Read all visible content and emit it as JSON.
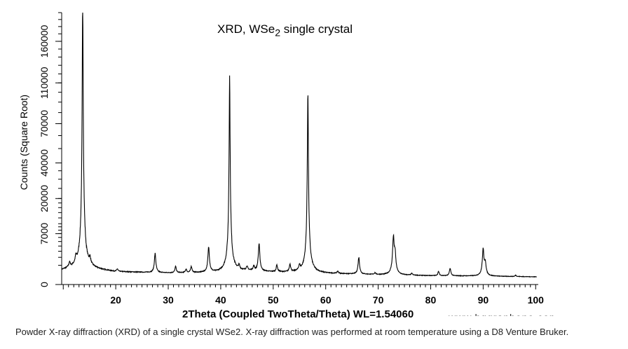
{
  "chart_data": {
    "type": "line",
    "title_main": "XRD, WSe",
    "title_sub": "2",
    "title_rest": " single crystal",
    "xlabel": "2Theta (Coupled TwoTheta/Theta) WL=1.54060",
    "ylabel": "Counts (Square Root)",
    "y_scale": "sqrt",
    "xlim": [
      9.7,
      100.5
    ],
    "ylim": [
      0,
      200000
    ],
    "x_ticks": [
      20,
      30,
      40,
      50,
      60,
      70,
      80,
      90,
      100
    ],
    "y_ticks": [
      0,
      7000,
      20000,
      40000,
      70000,
      110000,
      160000
    ],
    "grid": false,
    "line_color": "#000000",
    "baseline": [
      [
        9.7,
        520
      ],
      [
        11,
        650
      ],
      [
        14,
        700
      ],
      [
        16,
        600
      ],
      [
        20,
        430
      ],
      [
        30,
        360
      ],
      [
        40,
        380
      ],
      [
        45,
        500
      ],
      [
        50,
        420
      ],
      [
        60,
        330
      ],
      [
        70,
        260
      ],
      [
        80,
        210
      ],
      [
        90,
        190
      ],
      [
        100,
        160
      ]
    ],
    "peaks": [
      {
        "x": 11.2,
        "y": 500
      },
      {
        "x": 12.4,
        "y": 900
      },
      {
        "x": 13.7,
        "y": 220000
      },
      {
        "x": 15.1,
        "y": 800
      },
      {
        "x": 20.3,
        "y": 200
      },
      {
        "x": 27.5,
        "y": 2200
      },
      {
        "x": 31.4,
        "y": 500
      },
      {
        "x": 33.4,
        "y": 250
      },
      {
        "x": 34.4,
        "y": 500
      },
      {
        "x": 37.7,
        "y": 3400
      },
      {
        "x": 41.7,
        "y": 116000
      },
      {
        "x": 43.5,
        "y": 400
      },
      {
        "x": 45.0,
        "y": 350
      },
      {
        "x": 46.3,
        "y": 400
      },
      {
        "x": 47.3,
        "y": 4000
      },
      {
        "x": 50.7,
        "y": 600
      },
      {
        "x": 53.2,
        "y": 700
      },
      {
        "x": 55.0,
        "y": 500
      },
      {
        "x": 56.6,
        "y": 102000
      },
      {
        "x": 62.3,
        "y": 150
      },
      {
        "x": 66.3,
        "y": 1700
      },
      {
        "x": 69.4,
        "y": 100
      },
      {
        "x": 72.9,
        "y": 6000
      },
      {
        "x": 73.2,
        "y": 2500
      },
      {
        "x": 76.4,
        "y": 100
      },
      {
        "x": 81.5,
        "y": 250
      },
      {
        "x": 83.7,
        "y": 500
      },
      {
        "x": 90.0,
        "y": 3300
      },
      {
        "x": 90.4,
        "y": 1200
      },
      {
        "x": 96.2,
        "y": 60
      }
    ]
  },
  "watermark": "www.hqgraphene.com",
  "caption": "Powder X-ray diffraction (XRD) of a single crystal WSe2. X-ray diffraction was performed at room temperature using a D8 Venture Bruker."
}
